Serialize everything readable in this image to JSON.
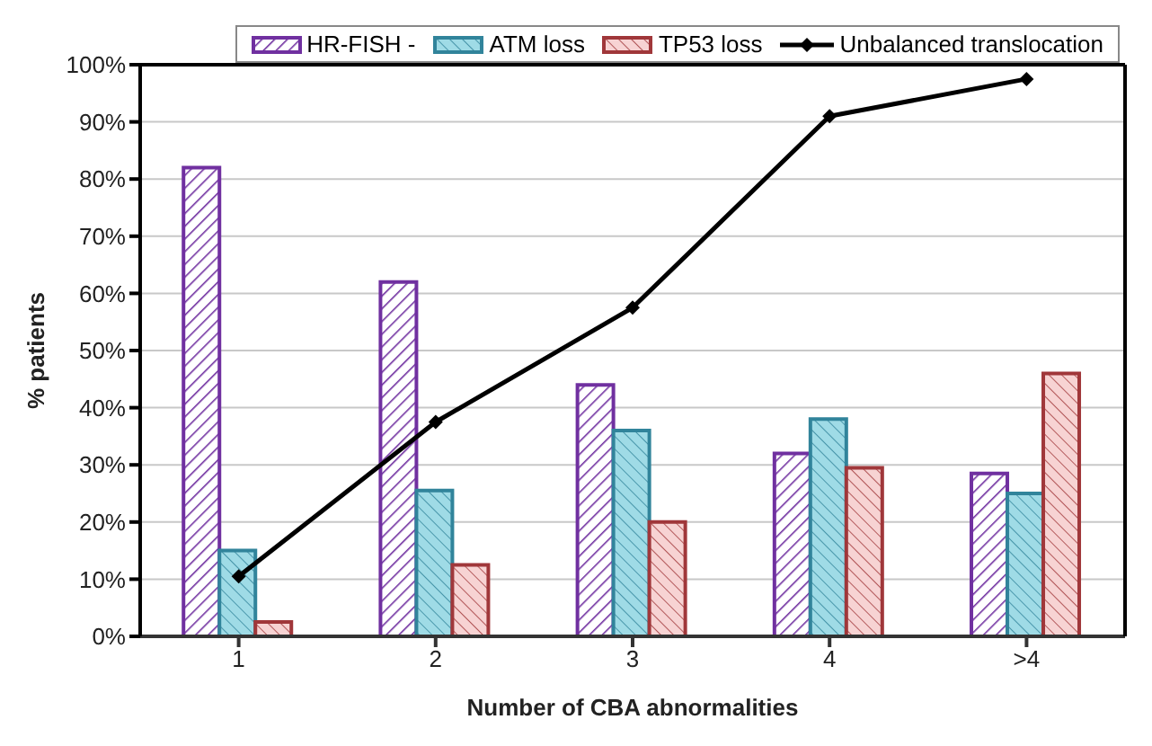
{
  "chart_data": {
    "type": "bar",
    "xlabel": "Number of CBA abnormalities",
    "ylabel": "% patients",
    "categories": [
      "1",
      "2",
      "3",
      "4",
      ">4"
    ],
    "series": [
      {
        "name": "HR-FISH -",
        "color": "#7030a0",
        "values": [
          82,
          62,
          44,
          32,
          28.5
        ]
      },
      {
        "name": "ATM loss",
        "color": "#31849b",
        "values": [
          15,
          25.5,
          36,
          38,
          25
        ]
      },
      {
        "name": "TP53 loss",
        "color": "#a0373a",
        "values": [
          2.5,
          12.5,
          20,
          29.5,
          46
        ]
      },
      {
        "name": "Unbalanced translocation",
        "type": "line",
        "color": "#000000",
        "values": [
          10.5,
          37.5,
          57.5,
          91,
          97.5
        ]
      }
    ],
    "ylim": [
      0,
      100
    ],
    "yticks": [
      {
        "value": 0,
        "label": "0%"
      },
      {
        "value": 10,
        "label": "10%"
      },
      {
        "value": 20,
        "label": "20%"
      },
      {
        "value": 30,
        "label": "30%"
      },
      {
        "value": 40,
        "label": "40%"
      },
      {
        "value": 50,
        "label": "50%"
      },
      {
        "value": 60,
        "label": "60%"
      },
      {
        "value": 70,
        "label": "70%"
      },
      {
        "value": 80,
        "label": "80%"
      },
      {
        "value": 90,
        "label": "90%"
      },
      {
        "value": 100,
        "label": "100%"
      }
    ],
    "grid": "y",
    "legend": "top",
    "marker": "diamond",
    "line_style": "solid"
  }
}
